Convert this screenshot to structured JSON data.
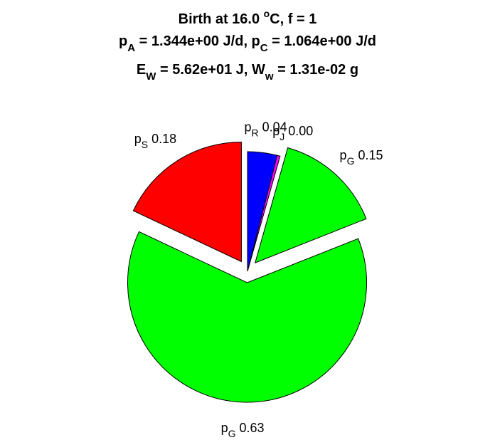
{
  "chart_data": {
    "type": "pie",
    "title": {
      "line1": {
        "pre": "Birth at 16.0 ",
        "sup": "o",
        "post": "C, f = 1"
      },
      "line2": [
        {
          "t": "p"
        },
        {
          "sub": "A"
        },
        {
          "t": " = 1.344e+00 J/d, p"
        },
        {
          "sub": "C"
        },
        {
          "t": " = 1.064e+00 J/d"
        }
      ],
      "line3": [
        {
          "t": "E"
        },
        {
          "sub": "W"
        },
        {
          "t": " = 5.62e+01 J, W"
        },
        {
          "sub": "w"
        },
        {
          "t": " = 1.31e-02 g"
        }
      ]
    },
    "slices": [
      {
        "name": "pR",
        "base": "p",
        "sub": "R",
        "value_label": "0.04",
        "value": 0.04,
        "color": "#0000ff",
        "exploded": false
      },
      {
        "name": "pJ",
        "base": "p",
        "sub": "J",
        "value_label": "0.00",
        "value": 0.004,
        "color": "#ff00ff",
        "exploded": false
      },
      {
        "name": "pG-small",
        "base": "p",
        "sub": "G",
        "value_label": "0.15",
        "value": 0.146,
        "color": "#00ff00",
        "exploded": true
      },
      {
        "name": "pG-large",
        "base": "p",
        "sub": "G",
        "value_label": "0.63",
        "value": 0.63,
        "color": "#00ff00",
        "exploded": true
      },
      {
        "name": "pS",
        "base": "p",
        "sub": "S",
        "value_label": "0.18",
        "value": 0.18,
        "color": "#ff0000",
        "exploded": true
      }
    ]
  }
}
